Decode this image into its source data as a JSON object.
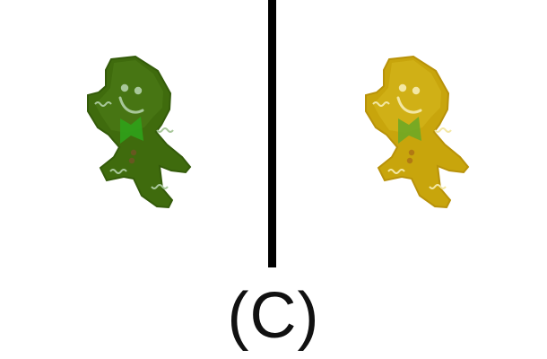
{
  "label": "(C)",
  "figures": [
    {
      "name": "green-gingerbread",
      "body_color": "#3f6b0d",
      "highlight_color": "#5f8f23",
      "icing_color": "#a8c79a",
      "bow_color": "#2fa21a",
      "button_color": "#6b5522"
    },
    {
      "name": "yellow-gingerbread",
      "body_color": "#c8a50c",
      "highlight_color": "#e0c52a",
      "icing_color": "#f3e7a4",
      "bow_color": "#6ea825",
      "button_color": "#b07614"
    }
  ]
}
